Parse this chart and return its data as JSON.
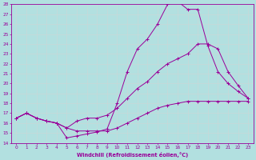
{
  "xlabel": "Windchill (Refroidissement éolien,°C)",
  "background_color": "#b2e0e0",
  "grid_color": "#c8d8d8",
  "line_color": "#990099",
  "xlim": [
    -0.5,
    23.5
  ],
  "ylim": [
    14,
    28
  ],
  "xticks": [
    0,
    1,
    2,
    3,
    4,
    5,
    6,
    7,
    8,
    9,
    10,
    11,
    12,
    13,
    14,
    15,
    16,
    17,
    18,
    19,
    20,
    21,
    22,
    23
  ],
  "yticks": [
    14,
    15,
    16,
    17,
    18,
    19,
    20,
    21,
    22,
    23,
    24,
    25,
    26,
    27,
    28
  ],
  "line1_x": [
    0,
    1,
    2,
    3,
    4,
    5,
    6,
    7,
    8,
    9,
    10,
    11,
    12,
    13,
    14,
    15,
    16,
    17,
    18,
    19,
    20,
    21,
    22,
    23
  ],
  "line1_y": [
    16.5,
    17.0,
    16.5,
    16.2,
    16.0,
    15.5,
    15.2,
    15.2,
    15.2,
    15.2,
    15.5,
    16.0,
    16.5,
    17.0,
    17.5,
    17.8,
    18.0,
    18.2,
    18.2,
    18.2,
    18.2,
    18.2,
    18.2,
    18.2
  ],
  "line2_x": [
    0,
    1,
    2,
    3,
    4,
    5,
    6,
    7,
    8,
    9,
    10,
    11,
    12,
    13,
    14,
    15,
    16,
    17,
    18,
    19,
    20,
    21,
    22,
    23
  ],
  "line2_y": [
    16.5,
    17.0,
    16.5,
    16.2,
    16.0,
    14.5,
    14.7,
    14.9,
    15.1,
    15.4,
    18.0,
    21.2,
    23.5,
    24.5,
    26.0,
    28.0,
    28.3,
    27.5,
    27.5,
    23.8,
    21.2,
    20.0,
    19.2,
    18.5
  ],
  "line3_x": [
    0,
    1,
    2,
    3,
    4,
    5,
    6,
    7,
    8,
    9,
    10,
    11,
    12,
    13,
    14,
    15,
    16,
    17,
    18,
    19,
    20,
    21,
    22,
    23
  ],
  "line3_y": [
    16.5,
    17.0,
    16.5,
    16.2,
    16.0,
    15.5,
    16.2,
    16.5,
    16.5,
    16.8,
    17.5,
    18.5,
    19.5,
    20.2,
    21.2,
    22.0,
    22.5,
    23.0,
    24.0,
    24.0,
    23.5,
    21.2,
    19.8,
    18.5
  ]
}
